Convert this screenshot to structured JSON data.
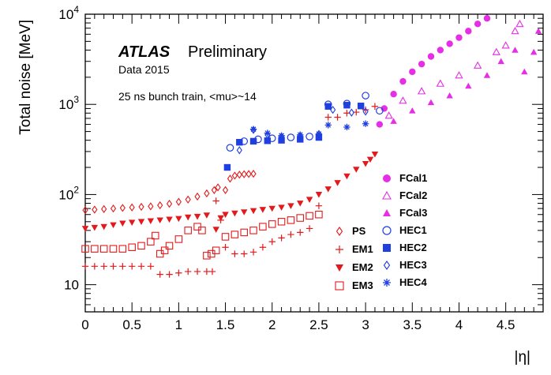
{
  "chart_data": {
    "type": "scatter",
    "xlabel": "|η|",
    "ylabel": "Total noise [MeV]",
    "xlim": [
      0,
      4.9
    ],
    "ylim": [
      5,
      10000
    ],
    "yscale": "log",
    "grid": false,
    "legend_position": "bottom-right",
    "x_ticks": [
      "0",
      "0.5",
      "1",
      "1.5",
      "2",
      "2.5",
      "3",
      "3.5",
      "4",
      "4.5"
    ],
    "y_ticks": [
      {
        "base": "10",
        "exp": ""
      },
      {
        "base": "10",
        "exp": "2"
      },
      {
        "base": "10",
        "exp": "3"
      },
      {
        "base": "10",
        "exp": "4"
      }
    ],
    "annotations": {
      "atlas": "ATLAS",
      "preliminary": "Preliminary",
      "data": "Data 2015",
      "conditions": "25 ns bunch train, <mu>~14"
    },
    "series": [
      {
        "name": "PS",
        "marker": "diamond-open",
        "color": "#e31a1c",
        "x": [
          0.0,
          0.1,
          0.2,
          0.3,
          0.4,
          0.5,
          0.6,
          0.7,
          0.8,
          0.9,
          1.0,
          1.1,
          1.2,
          1.3,
          1.38,
          1.42,
          1.5,
          1.55,
          1.6,
          1.65,
          1.7,
          1.75,
          1.8
        ],
        "y": [
          67,
          68,
          69,
          70,
          71,
          72,
          73,
          74,
          76,
          79,
          83,
          88,
          95,
          103,
          112,
          120,
          112,
          150,
          162,
          166,
          168,
          169,
          170
        ]
      },
      {
        "name": "EM1",
        "marker": "plus",
        "color": "#e31a1c",
        "x": [
          0.0,
          0.1,
          0.2,
          0.3,
          0.4,
          0.5,
          0.6,
          0.7,
          0.8,
          0.9,
          1.0,
          1.1,
          1.2,
          1.3,
          1.36,
          1.4,
          1.45,
          1.5,
          1.6,
          1.7,
          1.8,
          1.9,
          2.0,
          2.1,
          2.2,
          2.3,
          2.4,
          2.5,
          2.6,
          2.7,
          2.8,
          2.9,
          3.0,
          3.1
        ],
        "y": [
          16,
          16,
          16,
          16,
          16,
          16,
          16,
          16,
          13,
          13,
          13.5,
          14,
          14,
          14,
          14,
          85,
          52,
          26,
          22,
          22,
          23,
          26,
          30,
          33,
          36,
          38,
          42,
          75,
          720,
          720,
          800,
          820,
          870,
          950
        ]
      },
      {
        "name": "EM2",
        "marker": "triangle-down-filled",
        "color": "#e31a1c",
        "x": [
          0.0,
          0.1,
          0.2,
          0.3,
          0.4,
          0.5,
          0.6,
          0.7,
          0.8,
          0.9,
          1.0,
          1.1,
          1.2,
          1.3,
          1.4,
          1.45,
          1.5,
          1.6,
          1.7,
          1.8,
          1.9,
          2.0,
          2.1,
          2.2,
          2.3,
          2.4,
          2.5,
          2.6,
          2.7,
          2.8,
          2.9,
          3.0,
          3.05,
          3.1
        ],
        "y": [
          42,
          43,
          44,
          46,
          48,
          49,
          50,
          51,
          52,
          53,
          54,
          56,
          57,
          59,
          41,
          55,
          60,
          62,
          64,
          66,
          68,
          70,
          72,
          75,
          80,
          88,
          100,
          115,
          135,
          160,
          190,
          220,
          245,
          280
        ]
      },
      {
        "name": "EM3",
        "marker": "square-open",
        "color": "#e31a1c",
        "x": [
          0.0,
          0.1,
          0.2,
          0.3,
          0.4,
          0.5,
          0.6,
          0.7,
          0.75,
          0.8,
          0.85,
          0.9,
          1.0,
          1.1,
          1.2,
          1.25,
          1.3,
          1.35,
          1.4,
          1.5,
          1.6,
          1.7,
          1.8,
          1.9,
          2.0,
          2.1,
          2.2,
          2.3,
          2.4,
          2.5
        ],
        "y": [
          25,
          25,
          25,
          25,
          25,
          26,
          27,
          30,
          35,
          22,
          24,
          27,
          32,
          40,
          44,
          40,
          21,
          22,
          24,
          34,
          36,
          38,
          40,
          44,
          47,
          50,
          52,
          55,
          58,
          60
        ]
      },
      {
        "name": "FCal1",
        "marker": "circle-filled",
        "color": "#e52ee5",
        "x": [
          3.15,
          3.2,
          3.3,
          3.4,
          3.5,
          3.6,
          3.7,
          3.8,
          3.9,
          4.0,
          4.1,
          4.2,
          4.3
        ],
        "y": [
          600,
          900,
          1300,
          1800,
          2300,
          2800,
          3400,
          4000,
          4700,
          5500,
          6500,
          7800,
          9000
        ]
      },
      {
        "name": "FCal2",
        "marker": "triangle-up-open",
        "color": "#e52ee5",
        "x": [
          3.25,
          3.4,
          3.6,
          3.8,
          4.0,
          4.2,
          4.4,
          4.5,
          4.6,
          4.65
        ],
        "y": [
          750,
          1100,
          1400,
          1700,
          2100,
          2700,
          3800,
          4500,
          6500,
          7800
        ]
      },
      {
        "name": "FCal3",
        "marker": "triangle-up-filled",
        "color": "#e52ee5",
        "x": [
          3.3,
          3.5,
          3.7,
          3.9,
          4.1,
          4.3,
          4.45,
          4.6,
          4.7,
          4.8,
          4.85
        ],
        "y": [
          650,
          850,
          1050,
          1250,
          1600,
          2100,
          3000,
          4000,
          2300,
          3800,
          6500
        ]
      },
      {
        "name": "HEC1",
        "marker": "circle-open",
        "color": "#1f3fe0",
        "x": [
          1.55,
          1.7,
          1.85,
          2.0,
          2.2,
          2.4,
          2.6,
          2.8,
          3.0,
          3.15
        ],
        "y": [
          330,
          390,
          410,
          420,
          430,
          440,
          1000,
          1020,
          1250,
          850
        ]
      },
      {
        "name": "HEC2",
        "marker": "square-filled",
        "color": "#1f3fe0",
        "x": [
          1.52,
          1.65,
          1.8,
          1.95,
          2.1,
          2.3,
          2.5,
          2.6,
          2.8,
          2.95
        ],
        "y": [
          200,
          380,
          390,
          395,
          400,
          410,
          430,
          950,
          980,
          960
        ]
      },
      {
        "name": "HEC3",
        "marker": "diamond-open",
        "color": "#1f3fe0",
        "x": [
          1.65,
          1.8,
          1.95,
          2.1,
          2.3,
          2.5,
          2.65,
          2.85,
          3.0
        ],
        "y": [
          310,
          520,
          460,
          440,
          450,
          470,
          870,
          810,
          830
        ]
      },
      {
        "name": "HEC4",
        "marker": "star",
        "color": "#1f3fe0",
        "x": [
          1.8,
          1.95,
          2.1,
          2.3,
          2.5,
          2.6,
          2.8,
          3.0
        ],
        "y": [
          530,
          480,
          450,
          460,
          470,
          590,
          560,
          610
        ]
      }
    ]
  }
}
